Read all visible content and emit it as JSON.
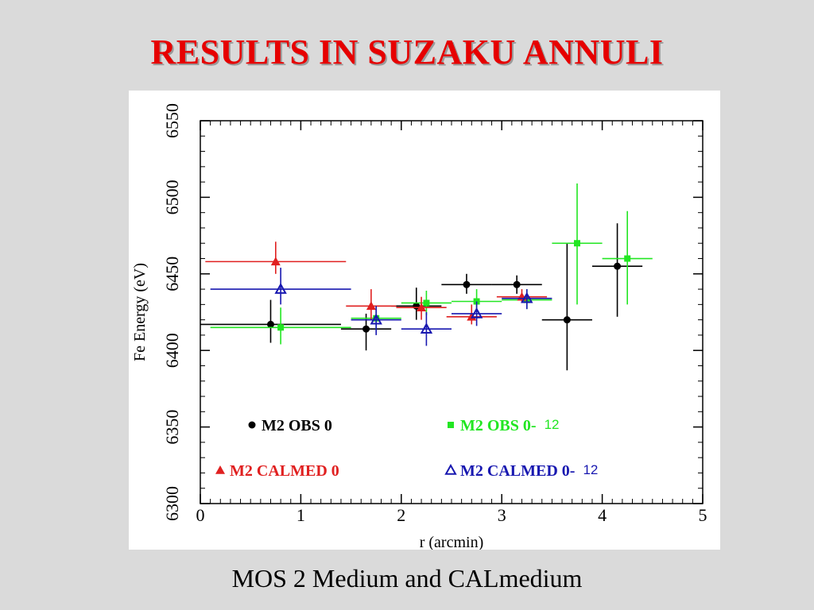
{
  "slide": {
    "title": "RESULTS IN SUZAKU ANNULI",
    "caption": "MOS 2 Medium and CALmedium"
  },
  "chart_data": {
    "type": "scatter",
    "xlabel": "r (arcmin)",
    "ylabel": "Fe Energy (eV)",
    "xlim": [
      0,
      5
    ],
    "ylim": [
      6300,
      6550
    ],
    "xticks": [
      "0",
      "1",
      "2",
      "3",
      "4",
      "5"
    ],
    "yticks": [
      "6300",
      "6350",
      "6400",
      "6450",
      "6500",
      "6550"
    ],
    "grid": false,
    "error_bars": true,
    "series": [
      {
        "name": "M2 OBS 0",
        "color": "#000000",
        "marker": "circle",
        "points": [
          {
            "x": 0.7,
            "xlo": 0.0,
            "xhi": 1.4,
            "y": 6417,
            "ylo": 6405,
            "yhi": 6433
          },
          {
            "x": 1.65,
            "xlo": 1.4,
            "xhi": 1.9,
            "y": 6414,
            "ylo": 6400,
            "yhi": 6424
          },
          {
            "x": 2.15,
            "xlo": 1.9,
            "xhi": 2.4,
            "y": 6429,
            "ylo": 6420,
            "yhi": 6441
          },
          {
            "x": 2.65,
            "xlo": 2.4,
            "xhi": 2.9,
            "y": 6443,
            "ylo": 6437,
            "yhi": 6450
          },
          {
            "x": 3.15,
            "xlo": 2.9,
            "xhi": 3.4,
            "y": 6443,
            "ylo": 6437,
            "yhi": 6449
          },
          {
            "x": 3.65,
            "xlo": 3.4,
            "xhi": 3.9,
            "y": 6420,
            "ylo": 6387,
            "yhi": 6470
          },
          {
            "x": 4.15,
            "xlo": 3.9,
            "xhi": 4.4,
            "y": 6455,
            "ylo": 6422,
            "yhi": 6483
          }
        ]
      },
      {
        "name": "M2 OBS 0-",
        "suffix": "12",
        "color": "#22e622",
        "marker": "square",
        "points": [
          {
            "x": 0.8,
            "xlo": 0.1,
            "xhi": 1.5,
            "y": 6415,
            "ylo": 6404,
            "yhi": 6428
          },
          {
            "x": 1.75,
            "xlo": 1.5,
            "xhi": 2.0,
            "y": 6421,
            "ylo": 6413,
            "yhi": 6428
          },
          {
            "x": 2.25,
            "xlo": 2.0,
            "xhi": 2.5,
            "y": 6431,
            "ylo": 6423,
            "yhi": 6439
          },
          {
            "x": 2.75,
            "xlo": 2.5,
            "xhi": 3.0,
            "y": 6432,
            "ylo": 6425,
            "yhi": 6440
          },
          {
            "x": 3.25,
            "xlo": 3.0,
            "xhi": 3.5,
            "y": 6433,
            "ylo": 6427,
            "yhi": 6440
          },
          {
            "x": 3.75,
            "xlo": 3.5,
            "xhi": 4.0,
            "y": 6470,
            "ylo": 6430,
            "yhi": 6509
          },
          {
            "x": 4.25,
            "xlo": 4.0,
            "xhi": 4.5,
            "y": 6460,
            "ylo": 6430,
            "yhi": 6491
          }
        ]
      },
      {
        "name": "M2 CALMED 0",
        "color": "#e02020",
        "marker": "triangle-filled",
        "points": [
          {
            "x": 0.75,
            "xlo": 0.05,
            "xhi": 1.45,
            "y": 6458,
            "ylo": 6450,
            "yhi": 6471
          },
          {
            "x": 1.7,
            "xlo": 1.45,
            "xhi": 1.95,
            "y": 6429,
            "ylo": 6420,
            "yhi": 6440
          },
          {
            "x": 2.2,
            "xlo": 1.95,
            "xhi": 2.45,
            "y": 6428,
            "ylo": 6420,
            "yhi": 6435
          },
          {
            "x": 2.7,
            "xlo": 2.45,
            "xhi": 2.95,
            "y": 6422,
            "ylo": 6417,
            "yhi": 6430
          },
          {
            "x": 3.2,
            "xlo": 2.95,
            "xhi": 3.45,
            "y": 6435,
            "ylo": 6431,
            "yhi": 6440
          }
        ]
      },
      {
        "name": "M2 CALMED 0-",
        "suffix": "12",
        "color": "#1818b0",
        "marker": "triangle-open",
        "points": [
          {
            "x": 0.8,
            "xlo": 0.1,
            "xhi": 1.5,
            "y": 6440,
            "ylo": 6430,
            "yhi": 6454
          },
          {
            "x": 1.75,
            "xlo": 1.5,
            "xhi": 2.0,
            "y": 6420,
            "ylo": 6410,
            "yhi": 6429
          },
          {
            "x": 2.25,
            "xlo": 2.0,
            "xhi": 2.5,
            "y": 6414,
            "ylo": 6403,
            "yhi": 6425
          },
          {
            "x": 2.75,
            "xlo": 2.5,
            "xhi": 3.0,
            "y": 6424,
            "ylo": 6416,
            "yhi": 6432
          },
          {
            "x": 3.25,
            "xlo": 3.0,
            "xhi": 3.5,
            "y": 6434,
            "ylo": 6427,
            "yhi": 6440
          }
        ]
      }
    ]
  }
}
